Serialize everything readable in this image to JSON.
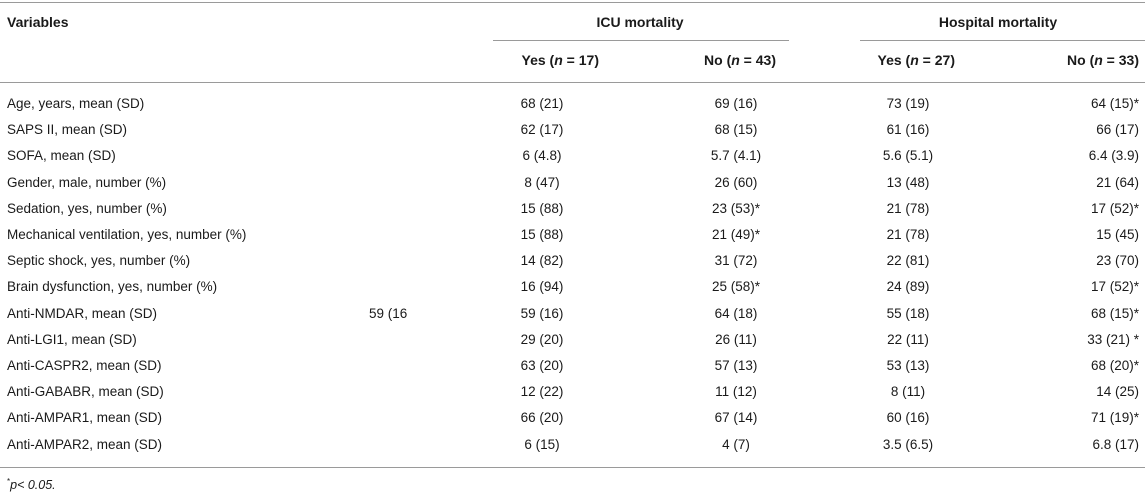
{
  "header": {
    "variables": "Variables",
    "icu_group": "ICU mortality",
    "hosp_group": "Hospital mortality",
    "subheaders": [
      "Yes (n = 17)",
      "No (n = 43)",
      "Yes (n = 27)",
      "No (n = 33)"
    ]
  },
  "rows": [
    {
      "label": "Age, years, mean (SD)",
      "extra": "",
      "v": [
        "68 (21)",
        "69 (16)",
        "73 (19)",
        "64 (15)*"
      ]
    },
    {
      "label": "SAPS II, mean (SD)",
      "extra": "",
      "v": [
        "62 (17)",
        "68 (15)",
        "61 (16)",
        "66 (17)"
      ]
    },
    {
      "label": "SOFA, mean (SD)",
      "extra": "",
      "v": [
        "6 (4.8)",
        "5.7 (4.1)",
        "5.6 (5.1)",
        "6.4 (3.9)"
      ]
    },
    {
      "label": "Gender, male, number (%)",
      "extra": "",
      "v": [
        "8 (47)",
        "26 (60)",
        "13 (48)",
        "21 (64)"
      ]
    },
    {
      "label": "Sedation, yes, number (%)",
      "extra": "",
      "v": [
        "15 (88)",
        "23 (53)*",
        "21 (78)",
        "17 (52)*"
      ]
    },
    {
      "label": "Mechanical ventilation, yes, number (%)",
      "extra": "",
      "v": [
        "15 (88)",
        "21 (49)*",
        "21 (78)",
        "15 (45)"
      ]
    },
    {
      "label": "Septic shock, yes, number (%)",
      "extra": "",
      "v": [
        "14 (82)",
        "31 (72)",
        "22 (81)",
        "23 (70)"
      ]
    },
    {
      "label": "Brain dysfunction, yes, number (%)",
      "extra": "",
      "v": [
        "16 (94)",
        "25 (58)*",
        "24 (89)",
        "17 (52)*"
      ]
    },
    {
      "label": "Anti-NMDAR, mean (SD)",
      "extra": "59 (16",
      "v": [
        "59 (16)",
        "64 (18)",
        "55 (18)",
        "68 (15)*"
      ]
    },
    {
      "label": "Anti-LGI1, mean (SD)",
      "extra": "",
      "v": [
        "29 (20)",
        "26 (11)",
        "22 (11)",
        "33 (21) *"
      ]
    },
    {
      "label": "Anti-CASPR2, mean (SD)",
      "extra": "",
      "v": [
        "63 (20)",
        "57 (13)",
        "53 (13)",
        "68 (20)*"
      ]
    },
    {
      "label": "Anti-GABABR, mean (SD)",
      "extra": "",
      "v": [
        "12 (22)",
        "11 (12)",
        "8 (11)",
        "14 (25)"
      ]
    },
    {
      "label": "Anti-AMPAR1, mean (SD)",
      "extra": "",
      "v": [
        "66 (20)",
        "67 (14)",
        "60 (16)",
        "71 (19)*"
      ]
    },
    {
      "label": "Anti-AMPAR2, mean (SD)",
      "extra": "",
      "v": [
        "6 (15)",
        "4 (7)",
        "3.5 (6.5)",
        "6.8 (17)"
      ]
    }
  ],
  "footnote": {
    "symbol": "*",
    "text": "p< 0.05."
  }
}
